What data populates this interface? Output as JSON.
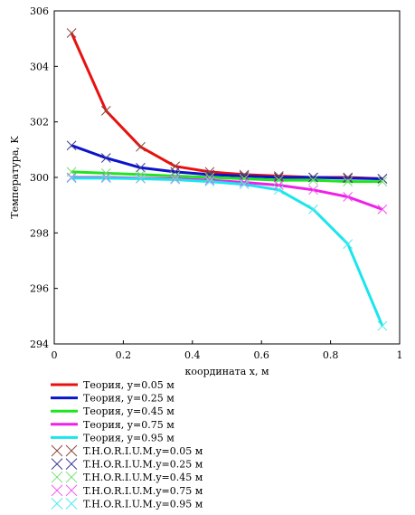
{
  "chart_data": {
    "type": "line",
    "xlabel": "координата x, м",
    "ylabel": "Температура, K",
    "xlim": [
      0,
      1
    ],
    "ylim": [
      294,
      306
    ],
    "xticks": [
      0,
      0.2,
      0.4,
      0.6,
      0.8,
      1
    ],
    "xtick_labels": [
      "0",
      "0.2",
      "0.4",
      "0.6",
      "0.8",
      "1"
    ],
    "yticks": [
      294,
      296,
      298,
      300,
      302,
      304,
      306
    ],
    "ytick_labels": [
      "294",
      "296",
      "298",
      "300",
      "302",
      "304",
      "306"
    ],
    "grid": false,
    "legend_position": "bottom",
    "x": [
      0.05,
      0.15,
      0.25,
      0.35,
      0.45,
      0.55,
      0.65,
      0.75,
      0.85,
      0.95
    ],
    "series": [
      {
        "name": "Теория, y=0.05 м",
        "kind": "line",
        "color": "#e8110f",
        "values": [
          305.2,
          302.4,
          301.1,
          300.4,
          300.2,
          300.1,
          300.05,
          300.0,
          300.0,
          299.95
        ]
      },
      {
        "name": "Теория, y=0.25 м",
        "kind": "line",
        "color": "#0a14c8",
        "values": [
          301.15,
          300.7,
          300.35,
          300.2,
          300.1,
          300.05,
          300.0,
          300.0,
          299.97,
          299.95
        ]
      },
      {
        "name": "Теория, y=0.45 м",
        "kind": "line",
        "color": "#1ee61e",
        "values": [
          300.2,
          300.15,
          300.1,
          300.05,
          300.0,
          299.95,
          299.9,
          299.9,
          299.85,
          299.85
        ]
      },
      {
        "name": "Теория, y=0.75 м",
        "kind": "line",
        "color": "#f020e8",
        "values": [
          300.0,
          300.0,
          299.97,
          299.95,
          299.9,
          299.82,
          299.72,
          299.55,
          299.3,
          298.85
        ]
      },
      {
        "name": "Теория, y=0.95 м",
        "kind": "line",
        "color": "#18e6ec",
        "values": [
          299.97,
          299.97,
          299.95,
          299.92,
          299.85,
          299.75,
          299.55,
          298.85,
          297.6,
          294.65
        ]
      },
      {
        "name": "T.H.O.R.I.U.M.y=0.05 м",
        "kind": "marker",
        "color": "#8a4a3c",
        "values": [
          305.2,
          302.4,
          301.1,
          300.4,
          300.2,
          300.1,
          300.05,
          300.0,
          300.0,
          299.95
        ]
      },
      {
        "name": "T.H.O.R.I.U.M.y=0.25 м",
        "kind": "marker",
        "color": "#3a3a9a",
        "values": [
          301.15,
          300.7,
          300.35,
          300.2,
          300.1,
          300.05,
          300.0,
          300.0,
          299.97,
          299.95
        ]
      },
      {
        "name": "T.H.O.R.I.U.M.y=0.45 м",
        "kind": "marker",
        "color": "#74de74",
        "values": [
          300.2,
          300.15,
          300.1,
          300.05,
          300.0,
          299.95,
          299.9,
          299.9,
          299.85,
          299.85
        ]
      },
      {
        "name": "T.H.O.R.I.U.M.y=0.75 м",
        "kind": "marker",
        "color": "#f050f0",
        "values": [
          300.0,
          300.0,
          299.97,
          299.95,
          299.9,
          299.82,
          299.72,
          299.55,
          299.3,
          298.85
        ]
      },
      {
        "name": "T.H.O.R.I.U.M.y=0.95 м",
        "kind": "marker",
        "color": "#50e8ec",
        "values": [
          299.97,
          299.97,
          299.95,
          299.92,
          299.85,
          299.75,
          299.55,
          298.85,
          297.6,
          294.65
        ]
      }
    ]
  }
}
